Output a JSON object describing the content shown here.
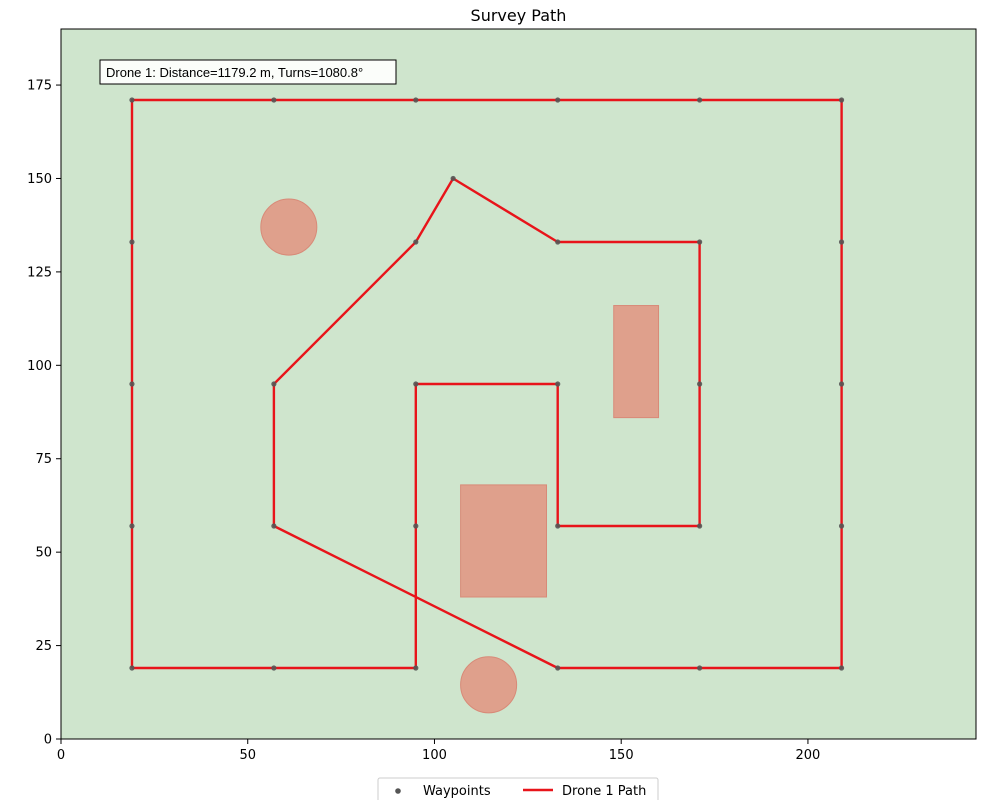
{
  "chart_data": {
    "type": "line",
    "title": "Survey Path",
    "xlabel": "",
    "ylabel": "",
    "xlim": [
      0,
      245
    ],
    "ylim": [
      0,
      190
    ],
    "x_ticks": [
      0,
      50,
      100,
      150,
      200
    ],
    "y_ticks": [
      0,
      25,
      50,
      75,
      100,
      125,
      150,
      175
    ],
    "grid": false,
    "background_color": "#cfe5cd",
    "annotation": "Drone 1: Distance=1179.2 m, Turns=1080.8°",
    "legend": {
      "placement": "bottom-center",
      "entries": [
        {
          "label": "Waypoints",
          "marker": "point",
          "color": "#555555"
        },
        {
          "label": "Drone 1 Path",
          "marker": "line",
          "color": "#e8141a"
        }
      ]
    },
    "waypoints": [
      [
        19,
        19
      ],
      [
        57,
        19
      ],
      [
        95,
        19
      ],
      [
        133,
        19
      ],
      [
        171,
        19
      ],
      [
        209,
        19
      ],
      [
        19,
        57
      ],
      [
        57,
        57
      ],
      [
        95,
        57
      ],
      [
        133,
        57
      ],
      [
        171,
        57
      ],
      [
        209,
        57
      ],
      [
        19,
        95
      ],
      [
        57,
        95
      ],
      [
        95,
        95
      ],
      [
        133,
        95
      ],
      [
        171,
        95
      ],
      [
        209,
        95
      ],
      [
        19,
        133
      ],
      [
        95,
        133
      ],
      [
        133,
        133
      ],
      [
        171,
        133
      ],
      [
        209,
        133
      ],
      [
        19,
        171
      ],
      [
        57,
        171
      ],
      [
        95,
        171
      ],
      [
        133,
        171
      ],
      [
        171,
        171
      ],
      [
        209,
        171
      ],
      [
        105,
        150
      ]
    ],
    "series": [
      {
        "name": "Drone 1 Path",
        "color": "#e8141a",
        "points": [
          [
            19,
            19
          ],
          [
            19,
            171
          ],
          [
            209,
            171
          ],
          [
            209,
            19
          ],
          [
            133,
            19
          ],
          [
            57,
            57
          ],
          [
            57,
            95
          ],
          [
            95,
            133
          ],
          [
            105,
            150
          ],
          [
            133,
            133
          ],
          [
            171,
            133
          ],
          [
            171,
            57
          ],
          [
            133,
            57
          ],
          [
            133,
            95
          ],
          [
            95,
            95
          ],
          [
            95,
            19
          ],
          [
            19,
            19
          ]
        ]
      }
    ],
    "obstacles": [
      {
        "shape": "circle",
        "cx": 61,
        "cy": 137,
        "r": 7.5
      },
      {
        "shape": "circle",
        "cx": 114.5,
        "cy": 14.5,
        "r": 7.5
      },
      {
        "shape": "rect",
        "x0": 107,
        "y0": 38,
        "x1": 130,
        "y1": 68
      },
      {
        "shape": "rect",
        "x0": 148,
        "y0": 86,
        "x1": 160,
        "y1": 116
      }
    ],
    "obstacle_color": "#dfa08c"
  }
}
